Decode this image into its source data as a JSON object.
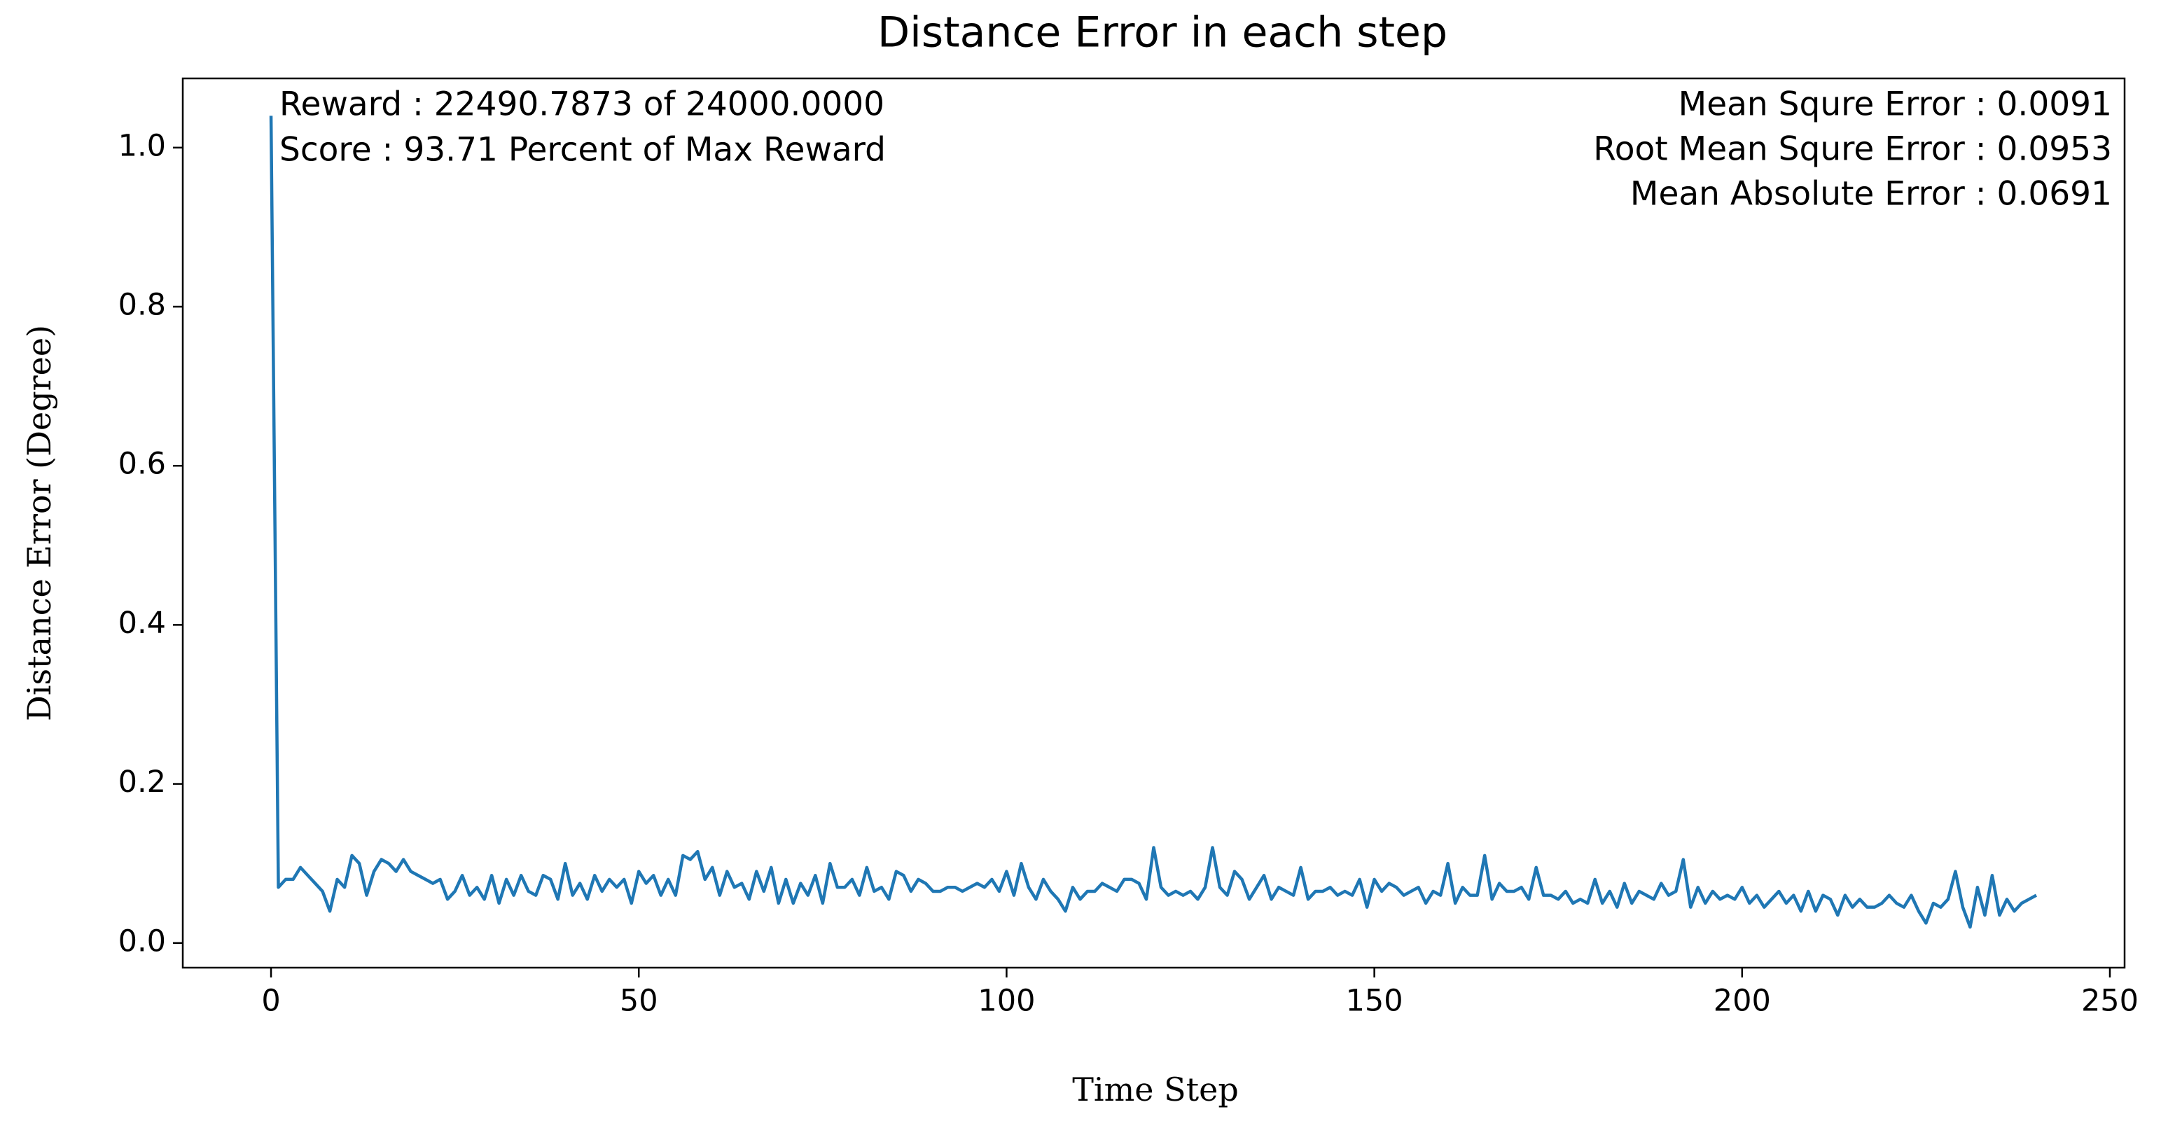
{
  "chart_data": {
    "type": "line",
    "title": "Distance Error in each step",
    "xlabel": "Time Step",
    "ylabel": "Distance Error (Degree)",
    "annotations_left": [
      "Reward : 22490.7873 of 24000.0000",
      "Score : 93.71 Percent of Max Reward"
    ],
    "annotations_right": [
      "Mean Squre Error : 0.0091",
      "Root Mean Squre Error : 0.0953",
      "Mean Absolute Error : 0.0691"
    ],
    "color": "#1f77b4",
    "xlim": [
      -12,
      252
    ],
    "ylim": [
      -0.031,
      1.087
    ],
    "xticks": [
      0,
      50,
      100,
      150,
      200,
      250
    ],
    "yticks": [
      {
        "value": 0,
        "label": "0.0"
      },
      0.2,
      0.4,
      0.6,
      0.8,
      {
        "value": 1,
        "label": "1.0"
      }
    ],
    "x": [
      0,
      1,
      2,
      3,
      4,
      5,
      6,
      7,
      8,
      9,
      10,
      11,
      12,
      13,
      14,
      15,
      16,
      17,
      18,
      19,
      20,
      21,
      22,
      23,
      24,
      25,
      26,
      27,
      28,
      29,
      30,
      31,
      32,
      33,
      34,
      35,
      36,
      37,
      38,
      39,
      40,
      41,
      42,
      43,
      44,
      45,
      46,
      47,
      48,
      49,
      50,
      51,
      52,
      53,
      54,
      55,
      56,
      57,
      58,
      59,
      60,
      61,
      62,
      63,
      64,
      65,
      66,
      67,
      68,
      69,
      70,
      71,
      72,
      73,
      74,
      75,
      76,
      77,
      78,
      79,
      80,
      81,
      82,
      83,
      84,
      85,
      86,
      87,
      88,
      89,
      90,
      91,
      92,
      93,
      94,
      95,
      96,
      97,
      98,
      99,
      100,
      101,
      102,
      103,
      104,
      105,
      106,
      107,
      108,
      109,
      110,
      111,
      112,
      113,
      114,
      115,
      116,
      117,
      118,
      119,
      120,
      121,
      122,
      123,
      124,
      125,
      126,
      127,
      128,
      129,
      130,
      131,
      132,
      133,
      134,
      135,
      136,
      137,
      138,
      139,
      140,
      141,
      142,
      143,
      144,
      145,
      146,
      147,
      148,
      149,
      150,
      151,
      152,
      153,
      154,
      155,
      156,
      157,
      158,
      159,
      160,
      161,
      162,
      163,
      164,
      165,
      166,
      167,
      168,
      169,
      170,
      171,
      172,
      173,
      174,
      175,
      176,
      177,
      178,
      179,
      180,
      181,
      182,
      183,
      184,
      185,
      186,
      187,
      188,
      189,
      190,
      191,
      192,
      193,
      194,
      195,
      196,
      197,
      198,
      199,
      200,
      201,
      202,
      203,
      204,
      205,
      206,
      207,
      208,
      209,
      210,
      211,
      212,
      213,
      214,
      215,
      216,
      217,
      218,
      219,
      220,
      221,
      222,
      223,
      224,
      225,
      226,
      227,
      228,
      229,
      230,
      231,
      232,
      233,
      234,
      235,
      236,
      237,
      238,
      239,
      240
    ],
    "values": [
      1.04,
      0.07,
      0.08,
      0.08,
      0.095,
      0.085,
      0.075,
      0.065,
      0.04,
      0.08,
      0.07,
      0.11,
      0.1,
      0.06,
      0.09,
      0.105,
      0.1,
      0.09,
      0.105,
      0.09,
      0.085,
      0.08,
      0.075,
      0.08,
      0.055,
      0.065,
      0.085,
      0.06,
      0.07,
      0.055,
      0.085,
      0.05,
      0.08,
      0.06,
      0.085,
      0.065,
      0.06,
      0.085,
      0.08,
      0.055,
      0.1,
      0.06,
      0.075,
      0.055,
      0.085,
      0.065,
      0.08,
      0.07,
      0.08,
      0.05,
      0.09,
      0.075,
      0.085,
      0.06,
      0.08,
      0.06,
      0.11,
      0.105,
      0.115,
      0.08,
      0.095,
      0.06,
      0.09,
      0.07,
      0.075,
      0.055,
      0.09,
      0.065,
      0.095,
      0.05,
      0.08,
      0.05,
      0.075,
      0.06,
      0.085,
      0.05,
      0.1,
      0.07,
      0.07,
      0.08,
      0.06,
      0.095,
      0.065,
      0.07,
      0.055,
      0.09,
      0.085,
      0.065,
      0.08,
      0.075,
      0.065,
      0.065,
      0.07,
      0.07,
      0.065,
      0.07,
      0.075,
      0.07,
      0.08,
      0.065,
      0.09,
      0.06,
      0.1,
      0.07,
      0.055,
      0.08,
      0.065,
      0.055,
      0.04,
      0.07,
      0.055,
      0.065,
      0.065,
      0.075,
      0.07,
      0.065,
      0.08,
      0.08,
      0.075,
      0.055,
      0.12,
      0.07,
      0.06,
      0.065,
      0.06,
      0.065,
      0.055,
      0.07,
      0.12,
      0.07,
      0.06,
      0.09,
      0.08,
      0.055,
      0.07,
      0.085,
      0.055,
      0.07,
      0.065,
      0.06,
      0.095,
      0.055,
      0.065,
      0.065,
      0.07,
      0.06,
      0.065,
      0.06,
      0.08,
      0.045,
      0.08,
      0.065,
      0.075,
      0.07,
      0.06,
      0.065,
      0.07,
      0.05,
      0.065,
      0.06,
      0.1,
      0.05,
      0.07,
      0.06,
      0.06,
      0.11,
      0.055,
      0.075,
      0.065,
      0.065,
      0.07,
      0.055,
      0.095,
      0.06,
      0.06,
      0.055,
      0.065,
      0.05,
      0.055,
      0.05,
      0.08,
      0.05,
      0.065,
      0.045,
      0.075,
      0.05,
      0.065,
      0.06,
      0.055,
      0.075,
      0.06,
      0.065,
      0.105,
      0.045,
      0.07,
      0.05,
      0.065,
      0.055,
      0.06,
      0.055,
      0.07,
      0.05,
      0.06,
      0.045,
      0.055,
      0.065,
      0.05,
      0.06,
      0.04,
      0.065,
      0.04,
      0.06,
      0.055,
      0.035,
      0.06,
      0.045,
      0.055,
      0.045,
      0.045,
      0.05,
      0.06,
      0.05,
      0.045,
      0.06,
      0.04,
      0.025,
      0.05,
      0.045,
      0.055,
      0.09,
      0.045,
      0.02,
      0.07,
      0.035,
      0.085,
      0.035,
      0.055,
      0.04,
      0.05,
      0.055,
      0.06
    ]
  }
}
